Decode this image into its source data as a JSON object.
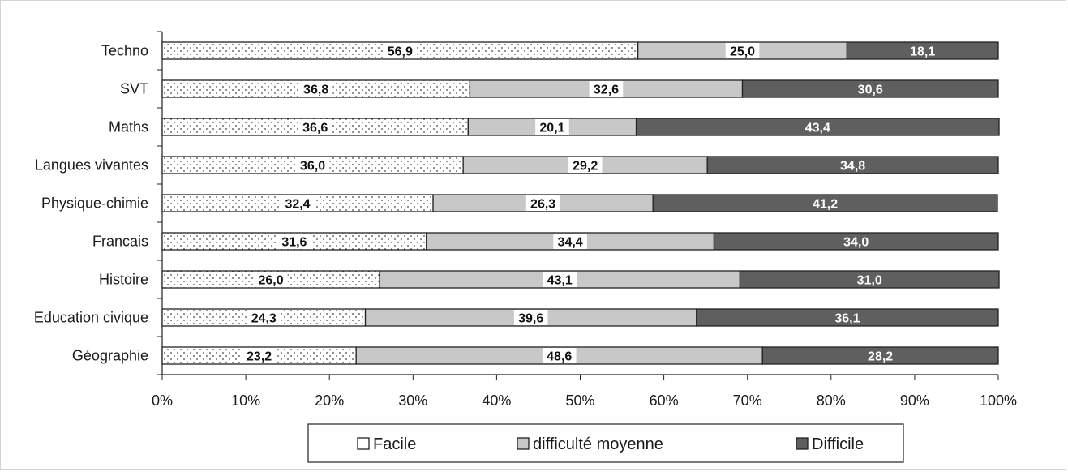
{
  "chart_data": {
    "type": "bar",
    "orientation": "horizontal",
    "stacked": "percent",
    "categories": [
      "Techno",
      "SVT",
      "Maths",
      "Langues vivantes",
      "Physique-chimie",
      "Francais",
      "Histoire",
      "Education civique",
      "Géographie"
    ],
    "series": [
      {
        "name": "Facile",
        "values": [
          56.9,
          36.8,
          36.6,
          36.0,
          32.4,
          31.6,
          26.0,
          24.3,
          23.2
        ],
        "labels": [
          "56,9",
          "36,8",
          "36,6",
          "36,0",
          "32,4",
          "31,6",
          "26,0",
          "24,3",
          "23,2"
        ],
        "color": "#ffffff",
        "pattern": "dotted"
      },
      {
        "name": "difficulté moyenne",
        "values": [
          25.0,
          32.6,
          20.1,
          29.2,
          26.3,
          34.4,
          43.1,
          39.6,
          48.6
        ],
        "labels": [
          "25,0",
          "32,6",
          "20,1",
          "29,2",
          "26,3",
          "34,4",
          "43,1",
          "39,6",
          "48,6"
        ],
        "color": "#c8c8c8"
      },
      {
        "name": "Difficile",
        "values": [
          18.1,
          30.6,
          43.4,
          34.8,
          41.2,
          34.0,
          31.0,
          36.1,
          28.2
        ],
        "labels": [
          "18,1",
          "30,6",
          "43,4",
          "34,8",
          "41,2",
          "34,0",
          "31,0",
          "36,1",
          "28,2"
        ],
        "color": "#5f5f5f"
      }
    ],
    "x_ticks": [
      "0%",
      "10%",
      "20%",
      "30%",
      "40%",
      "50%",
      "60%",
      "70%",
      "80%",
      "90%",
      "100%"
    ],
    "xlim": [
      0,
      100
    ],
    "grid": false,
    "legend_position": "bottom",
    "title": "",
    "xlabel": "",
    "ylabel": ""
  }
}
